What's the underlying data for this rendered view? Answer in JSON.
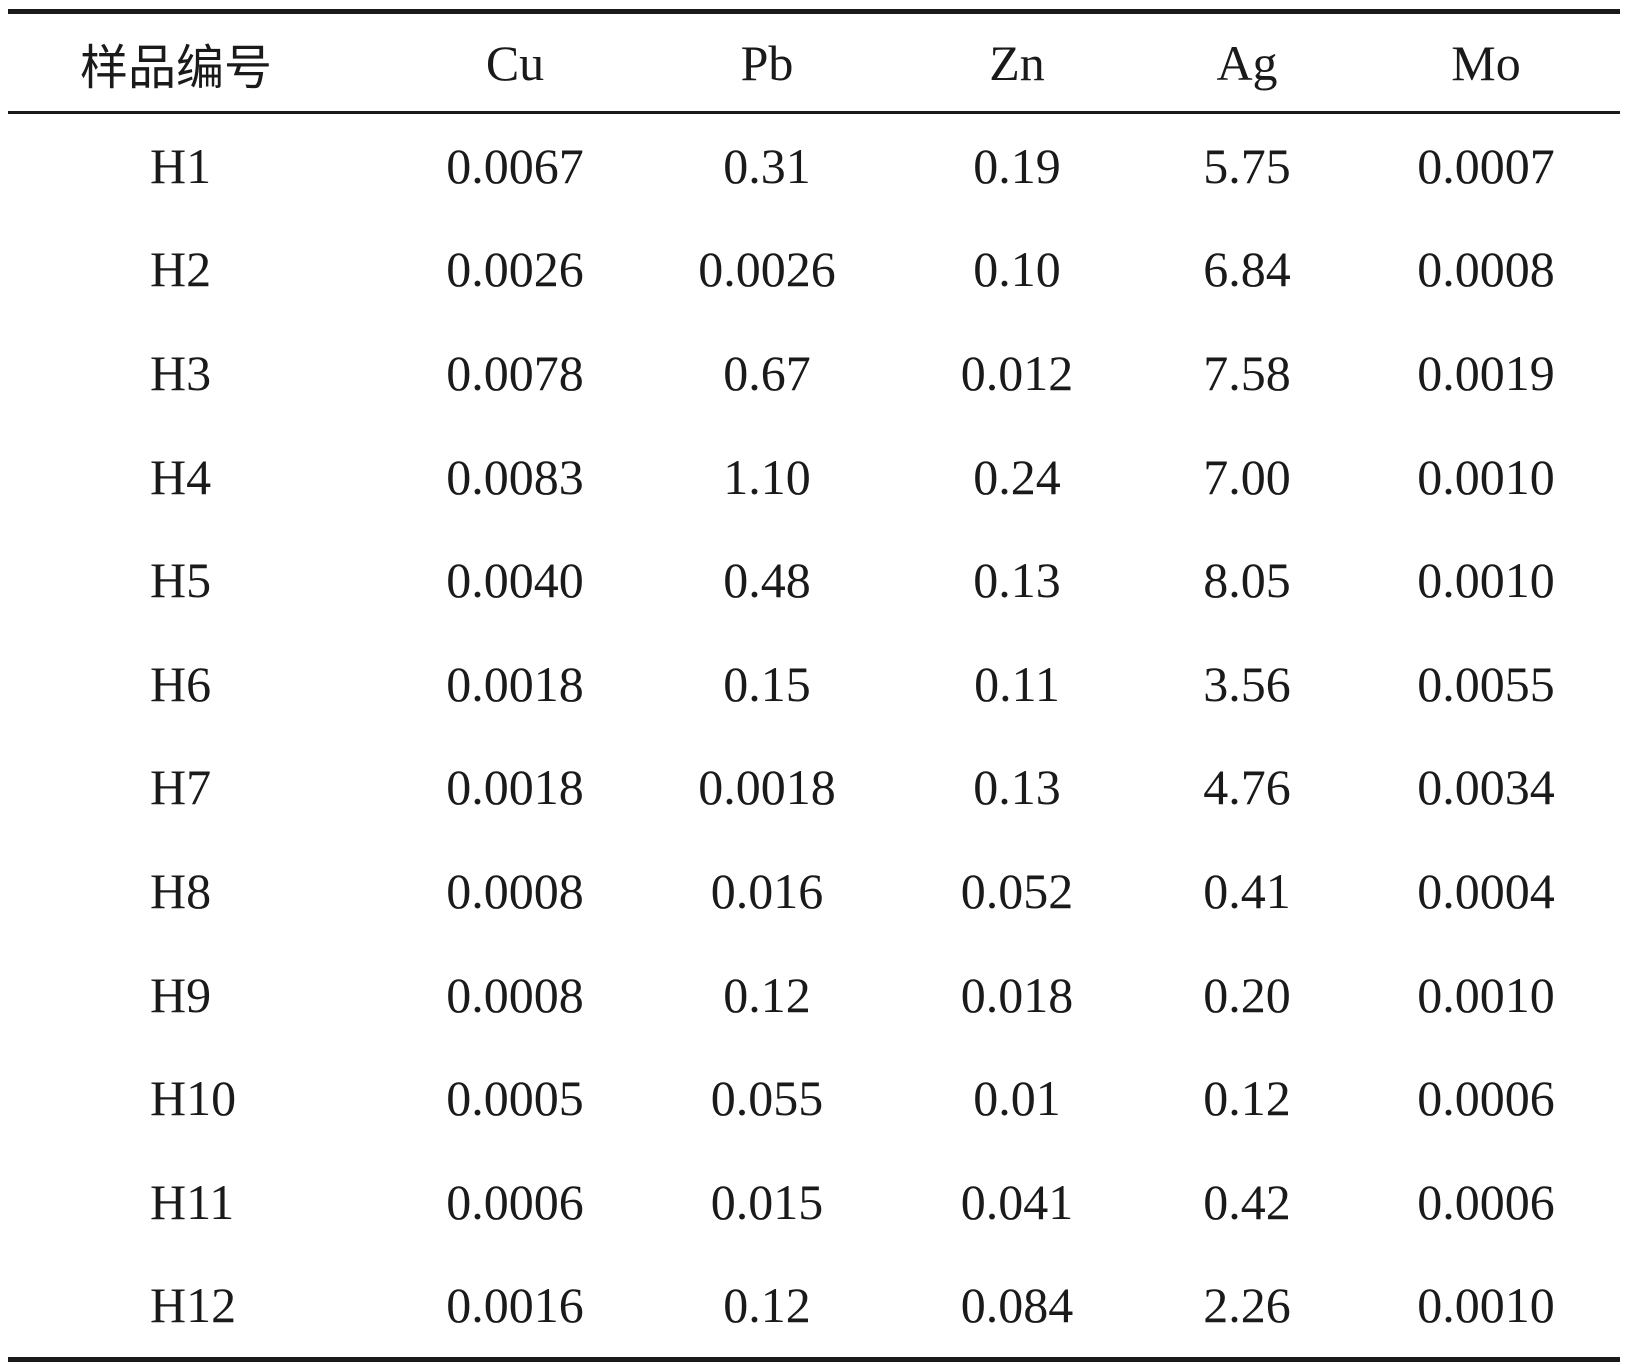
{
  "table": {
    "headers": [
      "样品编号",
      "Cu",
      "Pb",
      "Zn",
      "Ag",
      "Mo"
    ],
    "rows": [
      [
        "H1",
        "0.0067",
        "0.31",
        "0.19",
        "5.75",
        "0.0007"
      ],
      [
        "H2",
        "0.0026",
        "0.0026",
        "0.10",
        "6.84",
        "0.0008"
      ],
      [
        "H3",
        "0.0078",
        "0.67",
        "0.012",
        "7.58",
        "0.0019"
      ],
      [
        "H4",
        "0.0083",
        "1.10",
        "0.24",
        "7.00",
        "0.0010"
      ],
      [
        "H5",
        "0.0040",
        "0.48",
        "0.13",
        "8.05",
        "0.0010"
      ],
      [
        "H6",
        "0.0018",
        "0.15",
        "0.11",
        "3.56",
        "0.0055"
      ],
      [
        "H7",
        "0.0018",
        "0.0018",
        "0.13",
        "4.76",
        "0.0034"
      ],
      [
        "H8",
        "0.0008",
        "0.016",
        "0.052",
        "0.41",
        "0.0004"
      ],
      [
        "H9",
        "0.0008",
        "0.12",
        "0.018",
        "0.20",
        "0.0010"
      ],
      [
        "H10",
        "0.0005",
        "0.055",
        "0.01",
        "0.12",
        "0.0006"
      ],
      [
        "H11",
        "0.0006",
        "0.015",
        "0.041",
        "0.42",
        "0.0006"
      ],
      [
        "H12",
        "0.0016",
        "0.12",
        "0.084",
        "2.26",
        "0.0010"
      ]
    ]
  }
}
